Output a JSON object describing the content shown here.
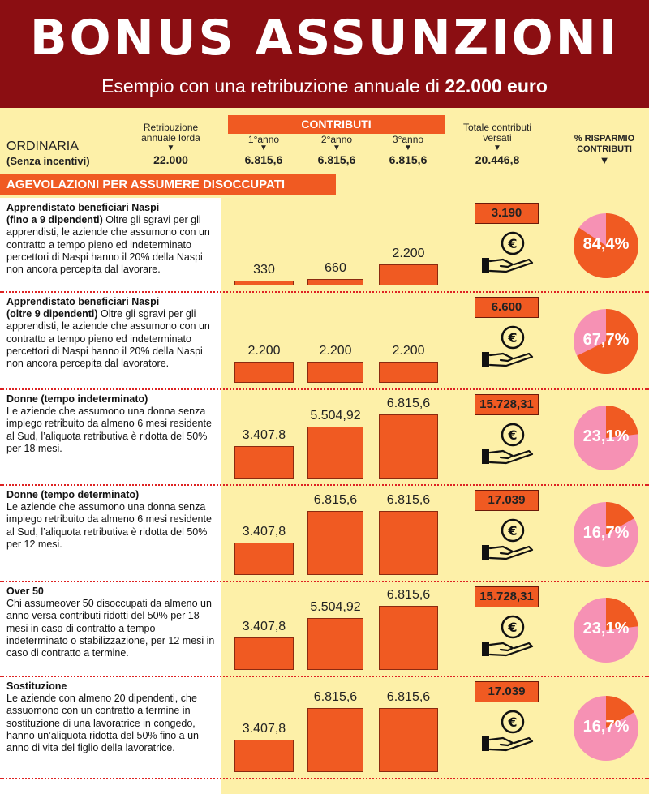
{
  "header": {
    "title": "BONUS  ASSUNZIONI",
    "subtitle_prefix": "Esempio con una retribuzione annuale di ",
    "subtitle_amount": "22.000 euro"
  },
  "columns": {
    "retribuzione": "Retribuzione annuale lorda",
    "contributi": "CONTRIBUTI",
    "anno1": "1°anno",
    "anno2": "2°anno",
    "anno3": "3°anno",
    "totale": "Totale contributi versati",
    "risparmio": "% RISPARMIO CONTRIBUTI"
  },
  "ordinaria": {
    "label": "ORDINARIA",
    "sub": "(Senza incentivi)",
    "retribuzione": "22.000",
    "anno1": "6.815,6",
    "anno2": "6.815,6",
    "anno3": "6.815,6",
    "totale": "20.446,8"
  },
  "section_band": "AGEVOLAZIONI PER ASSUMERE DISOCCUPATI",
  "sections": [
    {
      "title": "Apprendistato beneficiari Naspi",
      "text_html": "<b>(fino a 9 dipendenti)</b> Oltre gli sgravi per gli apprendisti, le aziende che assumono con un contratto a tempo pieno ed indeterminato percettori di Naspi hanno il 20% della Naspi non ancora percepita dal lavorare."
    },
    {
      "title": "Apprendistato beneficiari Naspi",
      "text_html": "<b>(oltre 9 dipendenti)</b> Oltre gli sgravi per gli apprendisti, le aziende che assumono con un contratto a tempo pieno ed indeterminato percettori di Naspi hanno il 20% della Naspi non ancora percepita dal lavoratore."
    },
    {
      "title": "Donne (tempo indeterminato)",
      "text_html": "Le aziende che assumono una donna senza impiego retribuito da almeno 6 mesi residente al Sud, l’aliquota retributiva è ridotta del 50% per  18 mesi."
    },
    {
      "title": "Donne (tempo determinato)",
      "text_html": "Le aziende che assumono una donna senza impiego retribuito da almeno 6 mesi residente al Sud, l’aliquota retributiva è ridotta del 50% per  12 mesi."
    },
    {
      "title": "Over 50",
      "text_html": "Chi assumeover 50 disoccupati da almeno un anno versa contributi ridotti del 50% per 18 mesi in caso di contratto a tempo indeterminato o stabilizzazione, per 12 mesi in caso di contratto a termine."
    },
    {
      "title": "Sostituzione",
      "text_html": "Le aziende con almeno 20 dipendenti, che assuomono con un contratto a termine in sostituzione di una lavoratrice in congedo, hanno un’aliquota  ridotta del 50% fino a un anno di vita del figlio della lavoratrice."
    }
  ],
  "icon": "hand-coin-icon",
  "colors": {
    "orange": "#f05a22",
    "pink": "#f691b4",
    "dark_red": "#8b0e12",
    "background": "#fdf0a8"
  },
  "chart_data": {
    "type": "bar",
    "categories": [
      "1°anno",
      "2°anno",
      "3°anno"
    ],
    "ylim": [
      0,
      6815.6
    ],
    "rows": [
      {
        "values": [
          330,
          660,
          2200
        ],
        "labels": [
          "330",
          "660",
          "2.200"
        ],
        "total": "3.190",
        "saving_pct": 84.4,
        "saving_label": "84,4%"
      },
      {
        "values": [
          2200,
          2200,
          2200
        ],
        "labels": [
          "2.200",
          "2.200",
          "2.200"
        ],
        "total": "6.600",
        "saving_pct": 67.7,
        "saving_label": "67,7%"
      },
      {
        "values": [
          3407.8,
          5504.92,
          6815.6
        ],
        "labels": [
          "3.407,8",
          "5.504,92",
          "6.815,6"
        ],
        "total": "15.728,31",
        "saving_pct": 23.1,
        "saving_label": "23,1%"
      },
      {
        "values": [
          3407.8,
          6815.6,
          6815.6
        ],
        "labels": [
          "3.407,8",
          "6.815,6",
          "6.815,6"
        ],
        "total": "17.039",
        "saving_pct": 16.7,
        "saving_label": "16,7%"
      },
      {
        "values": [
          3407.8,
          5504.92,
          6815.6
        ],
        "labels": [
          "3.407,8",
          "5.504,92",
          "6.815,6"
        ],
        "total": "15.728,31",
        "saving_pct": 23.1,
        "saving_label": "23,1%"
      },
      {
        "values": [
          3407.8,
          6815.6,
          6815.6
        ],
        "labels": [
          "3.407,8",
          "6.815,6",
          "6.815,6"
        ],
        "total": "17.039",
        "saving_pct": 16.7,
        "saving_label": "16,7%"
      }
    ]
  }
}
